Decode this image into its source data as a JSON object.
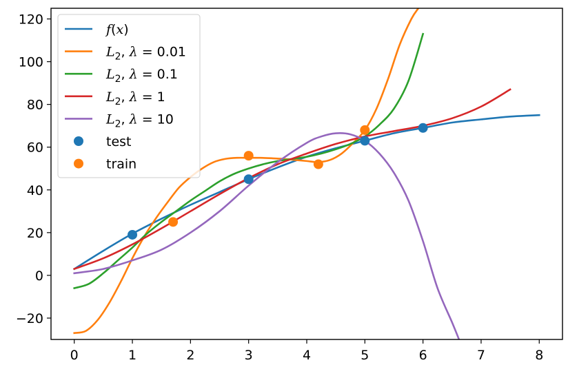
{
  "chart_data": {
    "type": "line",
    "title": "",
    "xlabel": "",
    "ylabel": "",
    "xlim": [
      -0.4,
      8.4
    ],
    "ylim": [
      -30,
      125
    ],
    "grid": false,
    "legend_position": "top-left",
    "xticks": [
      0,
      1,
      2,
      3,
      4,
      5,
      6,
      7,
      8
    ],
    "xtick_labels": [
      "0",
      "1",
      "2",
      "3",
      "4",
      "5",
      "6",
      "7",
      "8"
    ],
    "yticks": [
      -20,
      0,
      20,
      40,
      60,
      80,
      100,
      120
    ],
    "ytick_labels": [
      "−20",
      "0",
      "20",
      "40",
      "60",
      "80",
      "100",
      "120"
    ],
    "series": [
      {
        "name": "f(x)",
        "legend_parts": [
          {
            "text": "f",
            "italic": true
          },
          {
            "text": "(",
            "italic": false
          },
          {
            "text": "x",
            "italic": true
          },
          {
            "text": ")",
            "italic": false
          }
        ],
        "kind": "line",
        "color": "#1f77b4",
        "x": [
          0,
          0.5,
          1,
          1.5,
          2,
          2.5,
          3,
          3.5,
          4,
          4.5,
          5,
          5.5,
          6,
          6.5,
          7,
          7.5,
          8
        ],
        "y": [
          3,
          11.5,
          19.5,
          26.5,
          33,
          39,
          45,
          50.5,
          55.5,
          59.5,
          63,
          66.5,
          69,
          71.5,
          73,
          74.3,
          75
        ]
      },
      {
        "name": "L2, λ = 0.01",
        "legend_parts": [
          {
            "text": "L",
            "italic": true
          },
          {
            "text": "2",
            "sub": true
          },
          {
            "text": ", ",
            "italic": false
          },
          {
            "text": "λ",
            "italic": true
          },
          {
            "text": " = 0.01",
            "italic": false
          }
        ],
        "kind": "line",
        "color": "#ff7f0e",
        "x": [
          0,
          0.2,
          0.4,
          0.6,
          0.8,
          1.0,
          1.2,
          1.4,
          1.6,
          1.8,
          2.0,
          2.2,
          2.4,
          2.6,
          2.8,
          3.0,
          3.2,
          3.4,
          3.6,
          3.8,
          4.0,
          4.2,
          4.4,
          4.6,
          4.8,
          5.0,
          5.2,
          5.4,
          5.6,
          5.8,
          5.92
        ],
        "y": [
          -27,
          -26,
          -21,
          -13,
          -3,
          8,
          18,
          26.5,
          34,
          41,
          46,
          50,
          53,
          54.5,
          55,
          55,
          55,
          54.8,
          54.5,
          54,
          53.5,
          53,
          54,
          57,
          62,
          68,
          78,
          92,
          108,
          120,
          125
        ]
      },
      {
        "name": "L2, λ = 0.1",
        "legend_parts": [
          {
            "text": "L",
            "italic": true
          },
          {
            "text": "2",
            "sub": true
          },
          {
            "text": ", ",
            "italic": false
          },
          {
            "text": "λ",
            "italic": true
          },
          {
            "text": " = 0.1",
            "italic": false
          }
        ],
        "kind": "line",
        "color": "#2ca02c",
        "x": [
          0,
          0.25,
          0.5,
          0.75,
          1.0,
          1.25,
          1.5,
          1.75,
          2.0,
          2.25,
          2.5,
          2.75,
          3.0,
          3.25,
          3.5,
          3.75,
          4.0,
          4.25,
          4.5,
          4.75,
          5.0,
          5.25,
          5.5,
          5.75,
          6.0
        ],
        "y": [
          -6,
          -4,
          1,
          7,
          13,
          19.5,
          25,
          30,
          35,
          39.5,
          44,
          47.5,
          50,
          52,
          53.5,
          54.5,
          55.5,
          57,
          59,
          61.5,
          65,
          70.5,
          78,
          91,
          113
        ]
      },
      {
        "name": "L2, λ = 1",
        "legend_parts": [
          {
            "text": "L",
            "italic": true
          },
          {
            "text": "2",
            "sub": true
          },
          {
            "text": ", ",
            "italic": false
          },
          {
            "text": "λ",
            "italic": true
          },
          {
            "text": " = 1",
            "italic": false
          }
        ],
        "kind": "line",
        "color": "#d62728",
        "x": [
          0,
          0.5,
          1.0,
          1.5,
          2.0,
          2.5,
          3.0,
          3.5,
          4.0,
          4.5,
          5.0,
          5.5,
          6.0,
          6.5,
          7.0,
          7.5
        ],
        "y": [
          3,
          8,
          14.5,
          22,
          30,
          38,
          45.5,
          52,
          57,
          61.5,
          65,
          67.5,
          70,
          73.5,
          79,
          87
        ]
      },
      {
        "name": "L2, λ = 10",
        "legend_parts": [
          {
            "text": "L",
            "italic": true
          },
          {
            "text": "2",
            "sub": true
          },
          {
            "text": ", ",
            "italic": false
          },
          {
            "text": "λ",
            "italic": true
          },
          {
            "text": " = 10",
            "italic": false
          }
        ],
        "kind": "line",
        "color": "#9467bd",
        "x": [
          0,
          0.5,
          1.0,
          1.5,
          2.0,
          2.5,
          3.0,
          3.5,
          4.0,
          4.25,
          4.5,
          4.75,
          5.0,
          5.25,
          5.5,
          5.75,
          6.0,
          6.25,
          6.5,
          6.62
        ],
        "y": [
          1,
          3,
          7,
          12,
          20,
          30,
          42,
          53,
          62,
          65,
          66.5,
          66,
          63,
          57,
          48,
          35,
          16,
          -6,
          -22,
          -30
        ]
      },
      {
        "name": "test",
        "legend_parts": [
          {
            "text": "test",
            "italic": false
          }
        ],
        "kind": "scatter",
        "color": "#1f77b4",
        "x": [
          1,
          3,
          5,
          6
        ],
        "y": [
          19,
          45,
          63,
          69
        ]
      },
      {
        "name": "train",
        "legend_parts": [
          {
            "text": "train",
            "italic": false
          }
        ],
        "kind": "scatter",
        "color": "#ff7f0e",
        "x": [
          1.7,
          3,
          4.2,
          5
        ],
        "y": [
          25,
          56,
          52,
          68
        ]
      }
    ]
  }
}
